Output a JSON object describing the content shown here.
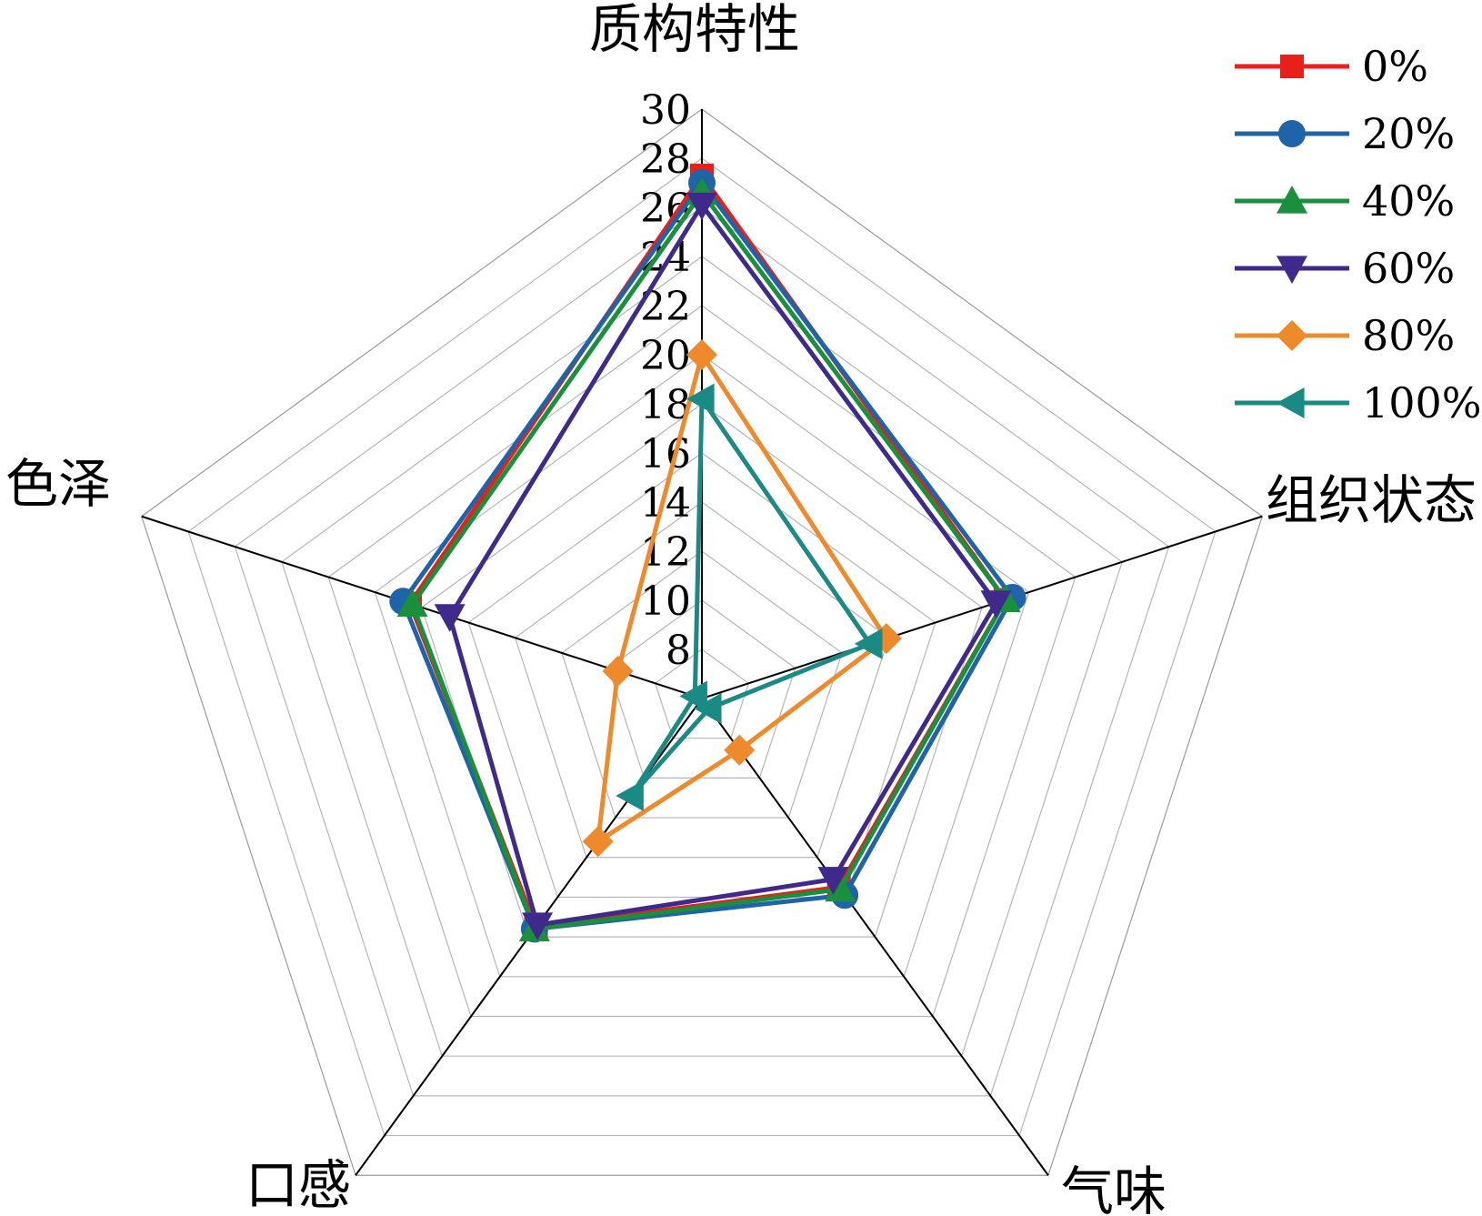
{
  "chart_data": {
    "type": "radar",
    "title": "",
    "axes": [
      "质构特性",
      "组织状态",
      "气味",
      "口感",
      "色泽"
    ],
    "r_ticks": [
      "8",
      "10",
      "12",
      "14",
      "16",
      "18",
      "20",
      "22",
      "24",
      "26",
      "28",
      "30"
    ],
    "rlim": [
      6,
      30
    ],
    "grid": true,
    "legend_position": "top-right",
    "series": [
      {
        "name": "0%",
        "color": "#e8201c",
        "marker": "square",
        "values": [
          27.3,
          19.0,
          15.5,
          17.5,
          18.5
        ]
      },
      {
        "name": "20%",
        "color": "#1f63a8",
        "marker": "circle",
        "values": [
          27.0,
          19.3,
          15.9,
          17.6,
          18.8
        ]
      },
      {
        "name": "40%",
        "color": "#1a8f3c",
        "marker": "triangle-up",
        "values": [
          26.6,
          19.0,
          15.6,
          17.6,
          18.4
        ]
      },
      {
        "name": "60%",
        "color": "#3f2a8c",
        "marker": "triangle-down",
        "values": [
          26.1,
          18.6,
          15.1,
          17.4,
          16.8
        ]
      },
      {
        "name": "80%",
        "color": "#ee8a2c",
        "marker": "diamond",
        "values": [
          20.0,
          13.9,
          8.6,
          13.2,
          9.6
        ]
      },
      {
        "name": "100%",
        "color": "#1c8a84",
        "marker": "triangle-left",
        "values": [
          18.2,
          13.2,
          6.5,
          10.9,
          6.3
        ]
      }
    ]
  }
}
